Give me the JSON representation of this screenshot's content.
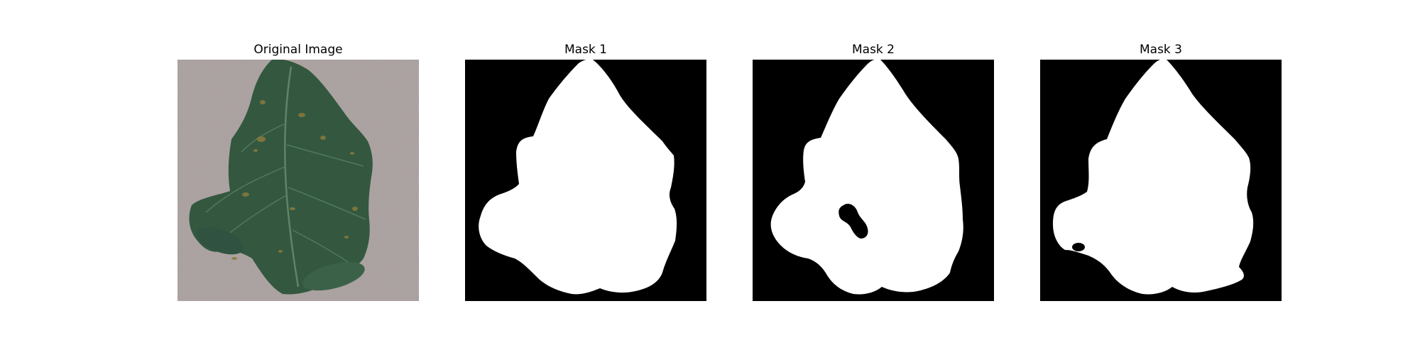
{
  "figure": {
    "panels": [
      {
        "title": "Original Image",
        "kind": "photo"
      },
      {
        "title": "Mask 1",
        "kind": "mask"
      },
      {
        "title": "Mask 2",
        "kind": "mask"
      },
      {
        "title": "Mask 3",
        "kind": "mask"
      }
    ]
  },
  "colors": {
    "background": "#ffffff",
    "mask_background": "#000000",
    "mask_foreground": "#ffffff",
    "photo_background": "#a89f9e",
    "leaf_dark": "#2d4f3b",
    "leaf_mid": "#3a6148",
    "leaf_light": "#4a7358",
    "leaf_spot": "#8a7a3c"
  }
}
